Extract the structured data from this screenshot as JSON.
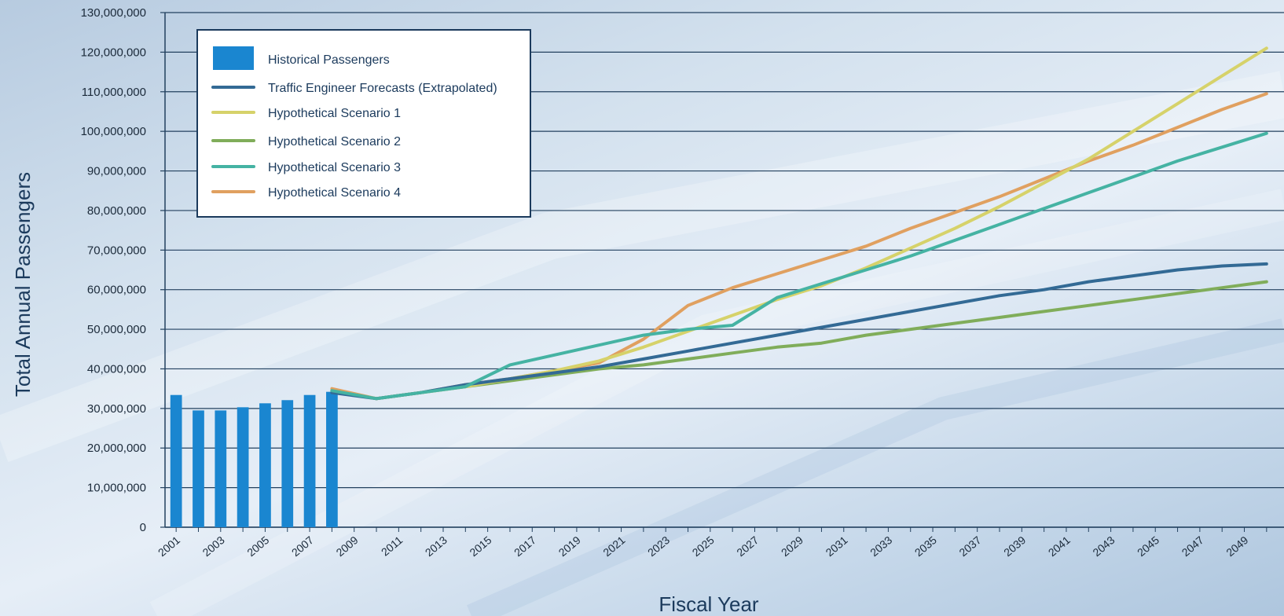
{
  "chart_data": {
    "type": "bar+line",
    "xlabel": "Fiscal Year",
    "ylabel": "Total Annual Passengers",
    "ylim": [
      0,
      130000000
    ],
    "y_ticks": [
      0,
      10000000,
      20000000,
      30000000,
      40000000,
      50000000,
      60000000,
      70000000,
      80000000,
      90000000,
      100000000,
      110000000,
      120000000,
      130000000
    ],
    "y_tick_labels": [
      "0",
      "10,000,000",
      "20,000,000",
      "30,000,000",
      "40,000,000",
      "50,000,000",
      "60,000,000",
      "70,000,000",
      "80,000,000",
      "90,000,000",
      "100,000,000",
      "110,000,000",
      "120,000,000",
      "130,000,000"
    ],
    "x_range": [
      2001,
      2050
    ],
    "x_tick_labels": [
      "2001",
      "2003",
      "2005",
      "2007",
      "2009",
      "2011",
      "2013",
      "2015",
      "2017",
      "2019",
      "2021",
      "2023",
      "2025",
      "2027",
      "2029",
      "2031",
      "2033",
      "2035",
      "2037",
      "2039",
      "2041",
      "2043",
      "2045",
      "2047",
      "2049"
    ],
    "grid": "horizontal",
    "legend_position": "top-left",
    "bars": {
      "name": "Historical Passengers",
      "color": "#1a86d0",
      "x": [
        2001,
        2002,
        2003,
        2004,
        2005,
        2006,
        2007,
        2008
      ],
      "values": [
        33400000,
        29500000,
        29500000,
        30300000,
        31300000,
        32100000,
        33400000,
        34200000
      ]
    },
    "series": [
      {
        "name": "Traffic Engineer Forecasts (Extrapolated)",
        "color": "#336a95",
        "x": [
          2008,
          2010,
          2012,
          2014,
          2016,
          2018,
          2020,
          2022,
          2024,
          2026,
          2028,
          2030,
          2032,
          2034,
          2036,
          2038,
          2040,
          2042,
          2044,
          2046,
          2048,
          2050
        ],
        "values": [
          34000000,
          32500000,
          34000000,
          36000000,
          37500000,
          39000000,
          40500000,
          42500000,
          44500000,
          46500000,
          48500000,
          50500000,
          52500000,
          54500000,
          56500000,
          58500000,
          60000000,
          62000000,
          63500000,
          65000000,
          66000000,
          66500000
        ]
      },
      {
        "name": "Hypothetical Scenario 1",
        "color": "#d6d26a",
        "x": [
          2008,
          2010,
          2012,
          2014,
          2016,
          2018,
          2020,
          2022,
          2024,
          2026,
          2028,
          2030,
          2032,
          2034,
          2036,
          2038,
          2040,
          2042,
          2044,
          2046,
          2048,
          2050
        ],
        "values": [
          34500000,
          32500000,
          34000000,
          35500000,
          37500000,
          39500000,
          42000000,
          45500000,
          49500000,
          53500000,
          57500000,
          61000000,
          65500000,
          70500000,
          75500000,
          81000000,
          87000000,
          93000000,
          100000000,
          107000000,
          114000000,
          121000000
        ]
      },
      {
        "name": "Hypothetical Scenario 2",
        "color": "#80ad5a",
        "x": [
          2008,
          2010,
          2012,
          2014,
          2016,
          2018,
          2020,
          2022,
          2024,
          2026,
          2028,
          2030,
          2032,
          2034,
          2036,
          2038,
          2040,
          2042,
          2044,
          2046,
          2048,
          2050
        ],
        "values": [
          34500000,
          32500000,
          34000000,
          35500000,
          37000000,
          38500000,
          40000000,
          41000000,
          42500000,
          44000000,
          45500000,
          46500000,
          48500000,
          50000000,
          51500000,
          53000000,
          54500000,
          56000000,
          57500000,
          59000000,
          60500000,
          62000000
        ]
      },
      {
        "name": "Hypothetical Scenario 3",
        "color": "#45b3a3",
        "x": [
          2008,
          2010,
          2012,
          2014,
          2016,
          2018,
          2020,
          2022,
          2024,
          2026,
          2028,
          2030,
          2032,
          2034,
          2036,
          2038,
          2040,
          2042,
          2044,
          2046,
          2048,
          2050
        ],
        "values": [
          34500000,
          32500000,
          34000000,
          35500000,
          41000000,
          43500000,
          46000000,
          48500000,
          50000000,
          51000000,
          58000000,
          61500000,
          65000000,
          68500000,
          72500000,
          76500000,
          80500000,
          84500000,
          88500000,
          92500000,
          96000000,
          99500000
        ]
      },
      {
        "name": "Hypothetical Scenario 4",
        "color": "#e0a060",
        "x": [
          2008,
          2010,
          2012,
          2014,
          2016,
          2018,
          2020,
          2022,
          2024,
          2026,
          2028,
          2030,
          2032,
          2034,
          2036,
          2038,
          2040,
          2042,
          2044,
          2046,
          2048,
          2050
        ],
        "values": [
          35000000,
          32500000,
          34000000,
          36000000,
          37500000,
          39500000,
          41500000,
          47500000,
          56000000,
          60500000,
          64000000,
          67500000,
          71000000,
          75500000,
          79500000,
          83500000,
          88000000,
          92500000,
          96500000,
          101000000,
          105500000,
          109500000
        ]
      }
    ]
  }
}
